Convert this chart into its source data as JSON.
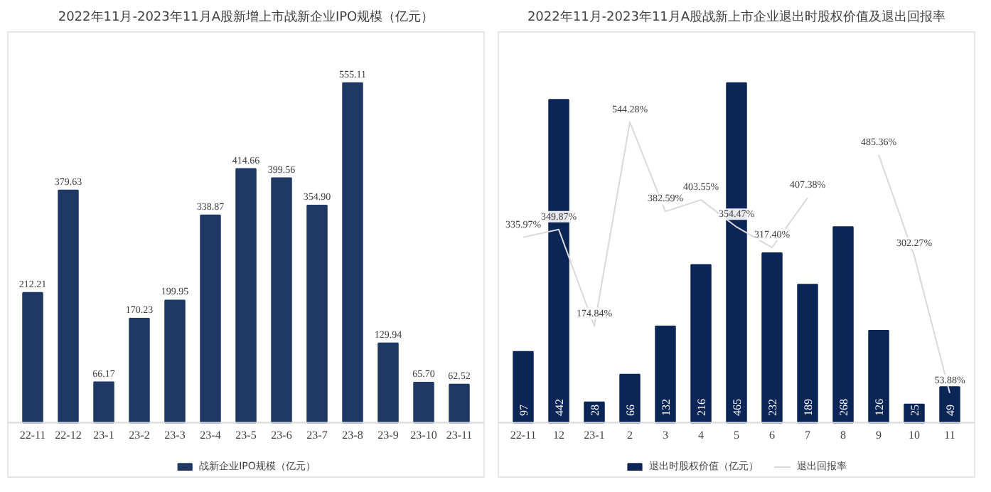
{
  "chart_data": [
    {
      "type": "bar",
      "title": "2022年11月-2023年11月A股新增上市战新企业IPO规模（亿元）",
      "categories": [
        "22-11",
        "22-12",
        "23-1",
        "23-2",
        "23-3",
        "23-4",
        "23-5",
        "23-6",
        "23-7",
        "23-8",
        "23-9",
        "23-10",
        "23-11"
      ],
      "series": [
        {
          "name": "战新企业IPO规模（亿元）",
          "color": "#1f3864",
          "values": [
            212.21,
            379.63,
            66.17,
            170.23,
            199.95,
            338.87,
            414.66,
            399.56,
            354.9,
            555.11,
            129.94,
            65.7,
            62.52
          ],
          "value_labels": [
            "212.21",
            "379.63",
            "66.17",
            "170.23",
            "199.95",
            "338.87",
            "414.66",
            "399.56",
            "354.90",
            "555.11",
            "129.94",
            "65.70",
            "62.52"
          ]
        }
      ],
      "data_labels": true,
      "legend": "bottom"
    },
    {
      "type": "bar",
      "title": "2022年11月-2023年11月A股战新上市企业退出时股权价值及退出回报率",
      "categories": [
        "22-11",
        "12",
        "23-1",
        "2",
        "3",
        "4",
        "5",
        "6",
        "7",
        "8",
        "9",
        "10",
        "11"
      ],
      "series": [
        {
          "name": "退出时股权价值（亿元）",
          "color": "#0b2557",
          "values": [
            97,
            442,
            28,
            66,
            132,
            216,
            465,
            232,
            189,
            268,
            126,
            25,
            49
          ]
        },
        {
          "name": "退出回报率",
          "type": "line",
          "axis": "y2",
          "color": "#d9d9d9",
          "values": [
            335.97,
            349.87,
            174.84,
            544.28,
            382.59,
            403.55,
            354.47,
            317.4,
            407.38,
            null,
            485.36,
            302.27,
            53.88
          ],
          "value_labels": [
            "335.97%",
            "349.87%",
            "174.84%",
            "544.28%",
            "382.59%",
            "403.55%",
            "354.47%",
            "317.40%",
            "407.38%",
            null,
            "485.36%",
            "302.27%",
            "53.88%"
          ]
        }
      ],
      "data_labels": true,
      "legend": "bottom"
    }
  ]
}
